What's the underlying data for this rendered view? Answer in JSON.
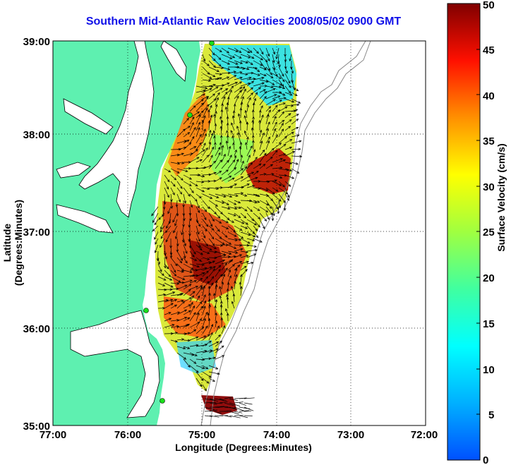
{
  "map": {
    "title": "Southern Mid-Atlantic Raw Velocities 2008/05/02 0900 GMT",
    "xlabel": "Longitude (Degrees:Minutes)",
    "ylabel": "Latitude (Degrees:Minutes)",
    "xticks": [
      "77:00",
      "76:00",
      "75:00",
      "74:00",
      "73:00",
      "72:00"
    ],
    "yticks": [
      "39:00",
      "38:00",
      "37:00",
      "36:00",
      "35:00"
    ],
    "grid": true
  },
  "colorbar": {
    "label": "Surface Velocity (cm/s)",
    "ticks": [
      "50",
      "45",
      "40",
      "35",
      "30",
      "25",
      "20",
      "15",
      "10",
      "5",
      "0"
    ],
    "min": 0,
    "max": 50
  },
  "colors": {
    "land": "#5ef0b0",
    "title": "#1010e8",
    "station": "#19e019",
    "isobath": "#888888"
  }
}
